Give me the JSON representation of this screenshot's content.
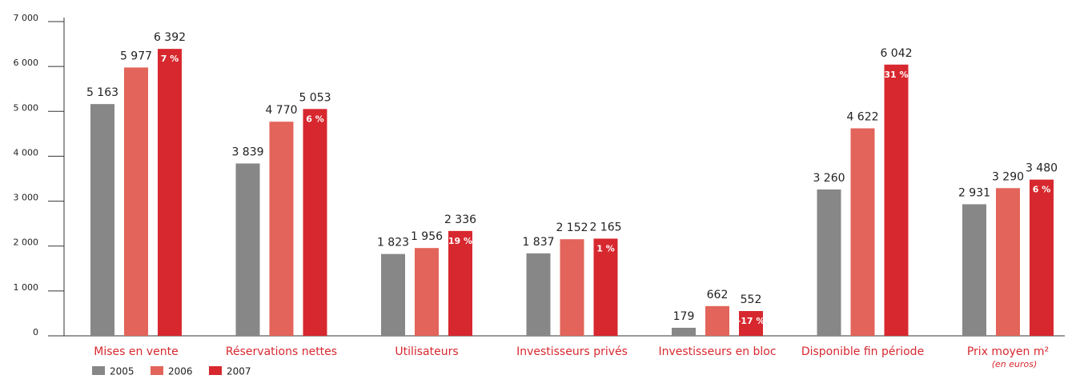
{
  "chart_data": {
    "type": "bar",
    "categories": [
      "Mises en vente",
      "Réservations nettes",
      "Utilisateurs",
      "Investisseurs privés",
      "Investisseurs en bloc",
      "Disponible fin période",
      "Prix moyen m²"
    ],
    "category_note": "(en euros)",
    "series": [
      {
        "name": "2005",
        "color": "#878787",
        "values": [
          5163,
          3839,
          1823,
          1837,
          179,
          3260,
          2931
        ],
        "value_labels": [
          "5 163",
          "3 839",
          "1 823",
          "1 837",
          "179",
          "3 260",
          "2 931"
        ]
      },
      {
        "name": "2006",
        "color": "#e2645a",
        "values": [
          5977,
          4770,
          1956,
          2152,
          662,
          4622,
          3290
        ],
        "value_labels": [
          "5 977",
          "4 770",
          "1 956",
          "2 152",
          "662",
          "4 622",
          "3 290"
        ]
      },
      {
        "name": "2007",
        "color": "#d7282f",
        "values": [
          6392,
          5053,
          2336,
          2165,
          552,
          6042,
          3480
        ],
        "value_labels": [
          "6 392",
          "5 053",
          "2 336",
          "2 165",
          "552",
          "6 042",
          "3 480"
        ],
        "change_labels": [
          "7 %",
          "6 %",
          "19 %",
          "1 %",
          "-17 %",
          "31 %",
          "6 %"
        ]
      }
    ],
    "ylim": [
      0,
      7000
    ],
    "yticks": [
      0,
      {
        "value": 1000,
        "label": "1 000"
      },
      {
        "value": 2000,
        "label": "2 000"
      },
      {
        "value": 3000,
        "label": "3 000"
      },
      {
        "value": 4000,
        "label": "4 000"
      },
      {
        "value": 5000,
        "label": "5 000"
      },
      {
        "value": 6000,
        "label": "6 000"
      },
      {
        "value": 7000,
        "label": "7 000"
      }
    ],
    "legend": "bottom-left"
  }
}
